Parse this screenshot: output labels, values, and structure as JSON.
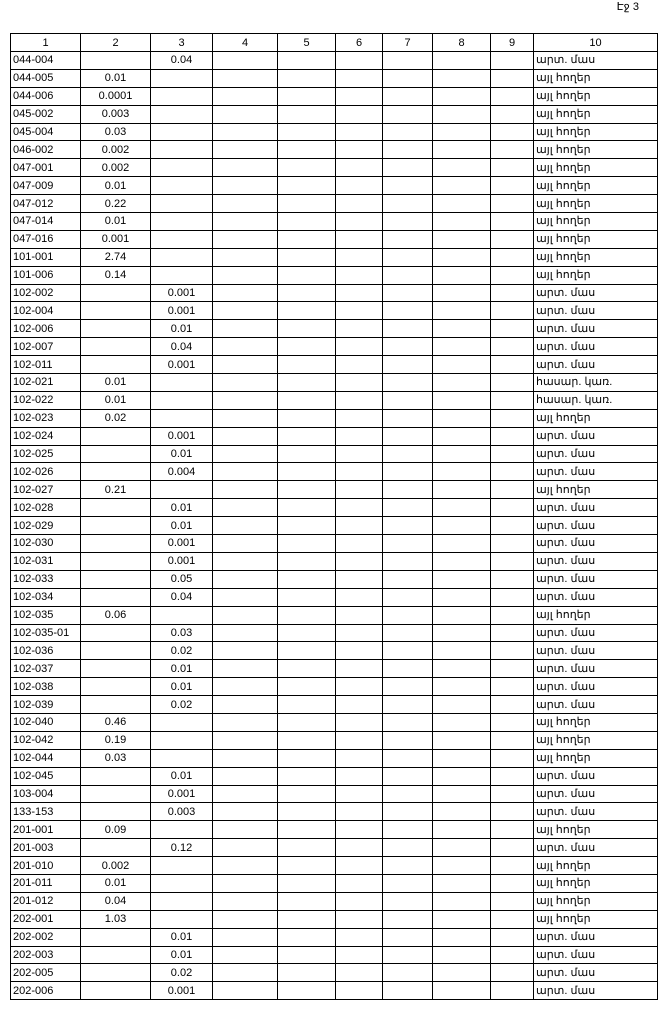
{
  "page_label": "Էջ 3",
  "header": [
    "1",
    "2",
    "3",
    "4",
    "5",
    "6",
    "7",
    "8",
    "9",
    "10"
  ],
  "rows": [
    {
      "id": "044-004",
      "c3": "0.04",
      "use": "արտ. մաս"
    },
    {
      "id": "044-005",
      "c2": "0.01",
      "use": "այլ հողեր"
    },
    {
      "id": "044-006",
      "c2": "0.0001",
      "use": "այլ հողեր"
    },
    {
      "id": "045-002",
      "c2": "0.003",
      "use": "այլ հողեր"
    },
    {
      "id": "045-004",
      "c2": "0.03",
      "use": "այլ հողեր"
    },
    {
      "id": "046-002",
      "c2": "0.002",
      "use": "այլ հողեր"
    },
    {
      "id": "047-001",
      "c2": "0.002",
      "use": "այլ հողեր"
    },
    {
      "id": "047-009",
      "c2": "0.01",
      "use": "այլ հողեր"
    },
    {
      "id": "047-012",
      "c2": "0.22",
      "use": "այլ հողեր"
    },
    {
      "id": "047-014",
      "c2": "0.01",
      "use": "այլ հողեր"
    },
    {
      "id": "047-016",
      "c2": "0.001",
      "use": "այլ հողեր"
    },
    {
      "id": "101-001",
      "c2": "2.74",
      "use": "այլ հողեր"
    },
    {
      "id": "101-006",
      "c2": "0.14",
      "use": "այլ հողեր"
    },
    {
      "id": "102-002",
      "c3": "0.001",
      "use": "արտ. մաս"
    },
    {
      "id": "102-004",
      "c3": "0.001",
      "use": "արտ. մաս"
    },
    {
      "id": "102-006",
      "c3": "0.01",
      "use": "արտ. մաս"
    },
    {
      "id": "102-007",
      "c3": "0.04",
      "use": "արտ. մաս"
    },
    {
      "id": "102-011",
      "c3": "0.001",
      "use": "արտ. մաս"
    },
    {
      "id": "102-021",
      "c2": "0.01",
      "use": "հասար. կառ."
    },
    {
      "id": "102-022",
      "c2": "0.01",
      "use": "հասար. կառ."
    },
    {
      "id": "102-023",
      "c2": "0.02",
      "use": "այլ հողեր"
    },
    {
      "id": "102-024",
      "c3": "0.001",
      "use": "արտ. մաս"
    },
    {
      "id": "102-025",
      "c3": "0.01",
      "use": "արտ. մաս"
    },
    {
      "id": "102-026",
      "c3": "0.004",
      "use": "արտ. մաս"
    },
    {
      "id": "102-027",
      "c2": "0.21",
      "use": "այլ հողեր"
    },
    {
      "id": "102-028",
      "c3": "0.01",
      "use": "արտ. մաս"
    },
    {
      "id": "102-029",
      "c3": "0.01",
      "use": "արտ. մաս"
    },
    {
      "id": "102-030",
      "c3": "0.001",
      "use": "արտ. մաս"
    },
    {
      "id": "102-031",
      "c3": "0.001",
      "use": "արտ. մաս"
    },
    {
      "id": "102-033",
      "c3": "0.05",
      "use": "արտ. մաս"
    },
    {
      "id": "102-034",
      "c3": "0.04",
      "use": "արտ. մաս"
    },
    {
      "id": "102-035",
      "c2": "0.06",
      "use": "այլ հողեր"
    },
    {
      "id": "102-035-01",
      "c3": "0.03",
      "use": "արտ. մաս"
    },
    {
      "id": "102-036",
      "c3": "0.02",
      "use": "արտ. մաս"
    },
    {
      "id": "102-037",
      "c3": "0.01",
      "use": "արտ. մաս"
    },
    {
      "id": "102-038",
      "c3": "0.01",
      "use": "արտ. մաս"
    },
    {
      "id": "102-039",
      "c3": "0.02",
      "use": "արտ. մաս"
    },
    {
      "id": "102-040",
      "c2": "0.46",
      "use": "այլ հողեր"
    },
    {
      "id": "102-042",
      "c2": "0.19",
      "use": "այլ հողեր"
    },
    {
      "id": "102-044",
      "c2": "0.03",
      "use": "այլ հողեր"
    },
    {
      "id": "102-045",
      "c3": "0.01",
      "use": "արտ. մաս"
    },
    {
      "id": "103-004",
      "c3": "0.001",
      "use": "արտ. մաս"
    },
    {
      "id": "133-153",
      "c3": "0.003",
      "use": "արտ. մաս"
    },
    {
      "id": "201-001",
      "c2": "0.09",
      "use": "այլ հողեր"
    },
    {
      "id": "201-003",
      "c3": "0.12",
      "use": "արտ. մաս"
    },
    {
      "id": "201-010",
      "c2": "0.002",
      "use": "այլ հողեր"
    },
    {
      "id": "201-011",
      "c2": "0.01",
      "use": "այլ հողեր"
    },
    {
      "id": "201-012",
      "c2": "0.04",
      "use": "այլ հողեր"
    },
    {
      "id": "202-001",
      "c2": "1.03",
      "use": "այլ հողեր"
    },
    {
      "id": "202-002",
      "c3": "0.01",
      "use": "արտ. մաս"
    },
    {
      "id": "202-003",
      "c3": "0.01",
      "use": "արտ. մաս"
    },
    {
      "id": "202-005",
      "c3": "0.02",
      "use": "արտ. մաս"
    },
    {
      "id": "202-006",
      "c3": "0.001",
      "use": "արտ. մաս"
    }
  ]
}
